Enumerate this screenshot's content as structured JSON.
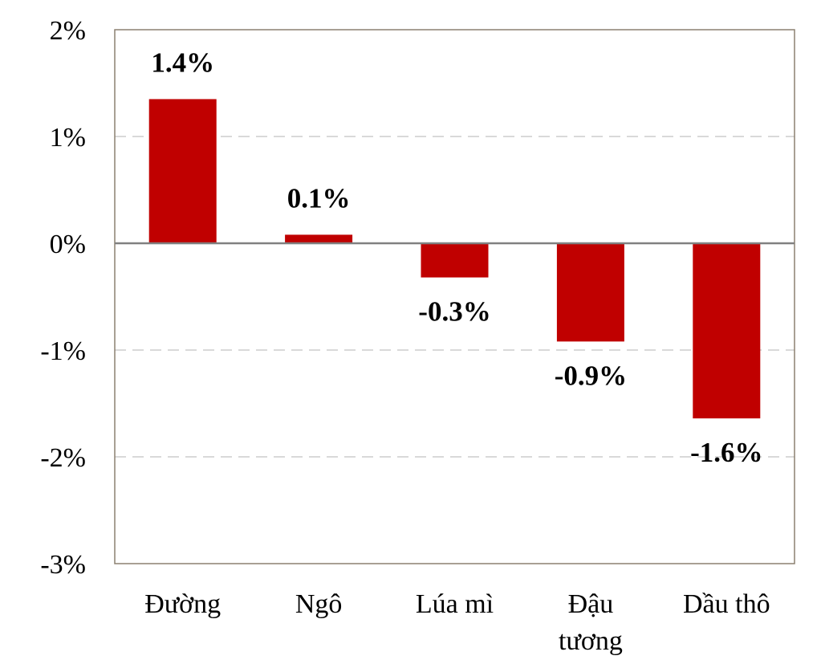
{
  "chart_data": {
    "type": "bar",
    "title": "",
    "xlabel": "",
    "ylabel": "",
    "categories": [
      [
        "Đường"
      ],
      [
        "Ngô"
      ],
      [
        "Lúa mì"
      ],
      [
        "Đậu",
        "tương"
      ],
      [
        "Dầu thô"
      ]
    ],
    "values": [
      1.35,
      0.08,
      -0.32,
      -0.92,
      -1.64
    ],
    "data_labels": [
      "1.4%",
      "0.1%",
      "-0.3%",
      "-0.9%",
      "-1.6%"
    ],
    "ylim": [
      -3,
      2
    ],
    "yticks": [
      2,
      1,
      0,
      -1,
      -2,
      -3
    ],
    "ytick_labels": [
      "2%",
      "1%",
      "0%",
      "-1%",
      "-2%",
      "-3%"
    ],
    "grid": true,
    "legend": "none",
    "colors": {
      "bar": "#c00000",
      "grid": "#d9d9d9",
      "frame": "#8c8070",
      "zero_line": "#808080"
    }
  }
}
